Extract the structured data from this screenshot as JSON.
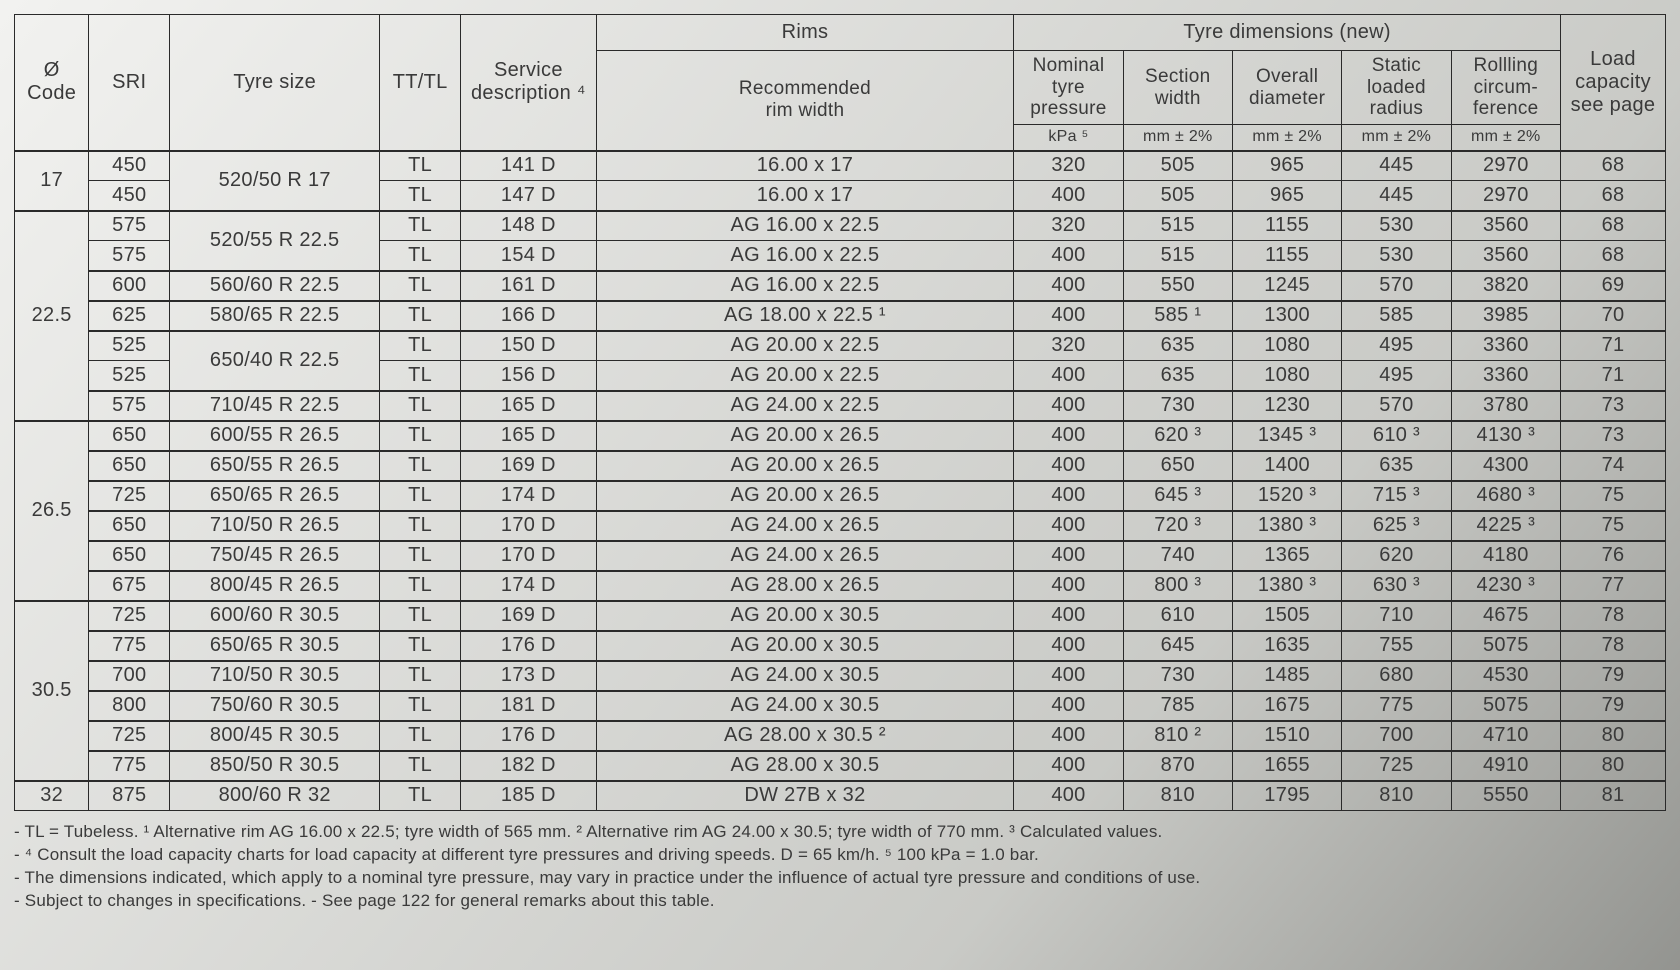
{
  "columns": {
    "code": "Ø\nCode",
    "sri": "SRI",
    "tyre": "Tyre size",
    "tttl": "TT/TL",
    "svc": "Service\ndescription ⁴",
    "rims_group": "Rims",
    "rim": "Recommended\nrim width",
    "dims_group": "Tyre dimensions (new)",
    "ntp": "Nominal\ntyre\npressure",
    "sw": "Section\nwidth",
    "od": "Overall\ndiameter",
    "slr": "Static\nloaded\nradius",
    "rc": "Rollling\ncircum-\nference",
    "load": "Load\ncapacity\nsee page",
    "u_ntp": "kPa ⁵",
    "u_sw": "mm ± 2%",
    "u_od": "mm ± 2%",
    "u_slr": "mm ± 2%",
    "u_rc": "mm ± 2%"
  },
  "groups": [
    {
      "code": "17",
      "rows": [
        {
          "sri": "450",
          "tyre": "520/50 R 17",
          "tyre_span": 2,
          "tttl": "TL",
          "svc": "141 D",
          "rim": "16.00 x 17",
          "ntp": "320",
          "sw": "505",
          "od": "965",
          "slr": "445",
          "rc": "2970",
          "load": "68"
        },
        {
          "sri": "450",
          "tttl": "TL",
          "svc": "147 D",
          "rim": "16.00 x 17",
          "ntp": "400",
          "sw": "505",
          "od": "965",
          "slr": "445",
          "rc": "2970",
          "load": "68"
        }
      ]
    },
    {
      "code": "22.5",
      "rows": [
        {
          "sri": "575",
          "tyre": "520/55 R 22.5",
          "tyre_span": 2,
          "tttl": "TL",
          "svc": "148 D",
          "rim": "AG 16.00 x 22.5",
          "ntp": "320",
          "sw": "515",
          "od": "1155",
          "slr": "530",
          "rc": "3560",
          "load": "68"
        },
        {
          "sri": "575",
          "tttl": "TL",
          "svc": "154 D",
          "rim": "AG 16.00 x 22.5",
          "ntp": "400",
          "sw": "515",
          "od": "1155",
          "slr": "530",
          "rc": "3560",
          "load": "68"
        },
        {
          "sri": "600",
          "tyre": "560/60 R 22.5",
          "tttl": "TL",
          "svc": "161 D",
          "rim": "AG 16.00 x 22.5",
          "ntp": "400",
          "sw": "550",
          "od": "1245",
          "slr": "570",
          "rc": "3820",
          "load": "69",
          "sub_start": true
        },
        {
          "sri": "625",
          "tyre": "580/65 R 22.5",
          "tttl": "TL",
          "svc": "166 D",
          "rim": "AG 18.00 x 22.5 ¹",
          "ntp": "400",
          "sw": "585 ¹",
          "od": "1300",
          "slr": "585",
          "rc": "3985",
          "load": "70",
          "sub_start": true
        },
        {
          "sri": "525",
          "tyre": "650/40 R 22.5",
          "tyre_span": 2,
          "tttl": "TL",
          "svc": "150 D",
          "rim": "AG 20.00 x 22.5",
          "ntp": "320",
          "sw": "635",
          "od": "1080",
          "slr": "495",
          "rc": "3360",
          "load": "71",
          "sub_start": true
        },
        {
          "sri": "525",
          "tttl": "TL",
          "svc": "156 D",
          "rim": "AG 20.00 x 22.5",
          "ntp": "400",
          "sw": "635",
          "od": "1080",
          "slr": "495",
          "rc": "3360",
          "load": "71"
        },
        {
          "sri": "575",
          "tyre": "710/45 R 22.5",
          "tttl": "TL",
          "svc": "165 D",
          "rim": "AG 24.00 x 22.5",
          "ntp": "400",
          "sw": "730",
          "od": "1230",
          "slr": "570",
          "rc": "3780",
          "load": "73",
          "sub_start": true
        }
      ]
    },
    {
      "code": "26.5",
      "rows": [
        {
          "sri": "650",
          "tyre": "600/55 R 26.5",
          "tttl": "TL",
          "svc": "165 D",
          "rim": "AG 20.00 x 26.5",
          "ntp": "400",
          "sw": "620 ³",
          "od": "1345 ³",
          "slr": "610 ³",
          "rc": "4130 ³",
          "load": "73"
        },
        {
          "sri": "650",
          "tyre": "650/55 R 26.5",
          "tttl": "TL",
          "svc": "169 D",
          "rim": "AG 20.00 x 26.5",
          "ntp": "400",
          "sw": "650",
          "od": "1400",
          "slr": "635",
          "rc": "4300",
          "load": "74",
          "sub_start": true
        },
        {
          "sri": "725",
          "tyre": "650/65 R 26.5",
          "tttl": "TL",
          "svc": "174 D",
          "rim": "AG 20.00 x 26.5",
          "ntp": "400",
          "sw": "645 ³",
          "od": "1520 ³",
          "slr": "715 ³",
          "rc": "4680 ³",
          "load": "75",
          "sub_start": true
        },
        {
          "sri": "650",
          "tyre": "710/50 R 26.5",
          "tttl": "TL",
          "svc": "170 D",
          "rim": "AG 24.00 x 26.5",
          "ntp": "400",
          "sw": "720 ³",
          "od": "1380 ³",
          "slr": "625 ³",
          "rc": "4225 ³",
          "load": "75",
          "sub_start": true
        },
        {
          "sri": "650",
          "tyre": "750/45 R 26.5",
          "tttl": "TL",
          "svc": "170 D",
          "rim": "AG 24.00 x 26.5",
          "ntp": "400",
          "sw": "740",
          "od": "1365",
          "slr": "620",
          "rc": "4180",
          "load": "76",
          "sub_start": true
        },
        {
          "sri": "675",
          "tyre": "800/45 R 26.5",
          "tttl": "TL",
          "svc": "174 D",
          "rim": "AG 28.00 x 26.5",
          "ntp": "400",
          "sw": "800 ³",
          "od": "1380 ³",
          "slr": "630 ³",
          "rc": "4230 ³",
          "load": "77",
          "sub_start": true
        }
      ]
    },
    {
      "code": "30.5",
      "rows": [
        {
          "sri": "725",
          "tyre": "600/60 R 30.5",
          "tttl": "TL",
          "svc": "169 D",
          "rim": "AG 20.00 x 30.5",
          "ntp": "400",
          "sw": "610",
          "od": "1505",
          "slr": "710",
          "rc": "4675",
          "load": "78"
        },
        {
          "sri": "775",
          "tyre": "650/65 R 30.5",
          "tttl": "TL",
          "svc": "176 D",
          "rim": "AG 20.00 x 30.5",
          "ntp": "400",
          "sw": "645",
          "od": "1635",
          "slr": "755",
          "rc": "5075",
          "load": "78",
          "sub_start": true
        },
        {
          "sri": "700",
          "tyre": "710/50 R 30.5",
          "tttl": "TL",
          "svc": "173 D",
          "rim": "AG 24.00 x 30.5",
          "ntp": "400",
          "sw": "730",
          "od": "1485",
          "slr": "680",
          "rc": "4530",
          "load": "79",
          "sub_start": true
        },
        {
          "sri": "800",
          "tyre": "750/60 R 30.5",
          "tttl": "TL",
          "svc": "181 D",
          "rim": "AG 24.00 x 30.5",
          "ntp": "400",
          "sw": "785",
          "od": "1675",
          "slr": "775",
          "rc": "5075",
          "load": "79",
          "sub_start": true
        },
        {
          "sri": "725",
          "tyre": "800/45 R 30.5",
          "tttl": "TL",
          "svc": "176 D",
          "rim": "AG 28.00 x 30.5 ²",
          "ntp": "400",
          "sw": "810 ²",
          "od": "1510",
          "slr": "700",
          "rc": "4710",
          "load": "80",
          "sub_start": true
        },
        {
          "sri": "775",
          "tyre": "850/50 R 30.5",
          "tttl": "TL",
          "svc": "182 D",
          "rim": "AG 28.00 x 30.5",
          "ntp": "400",
          "sw": "870",
          "od": "1655",
          "slr": "725",
          "rc": "4910",
          "load": "80",
          "sub_start": true
        }
      ]
    },
    {
      "code": "32",
      "rows": [
        {
          "sri": "875",
          "tyre": "800/60 R 32",
          "tttl": "TL",
          "svc": "185 D",
          "rim": "DW 27B x 32",
          "ntp": "400",
          "sw": "810",
          "od": "1795",
          "slr": "810",
          "rc": "5550",
          "load": "81"
        }
      ]
    }
  ],
  "footnotes": [
    "TL = Tubeless. ¹ Alternative rim AG 16.00 x 22.5; tyre width of 565 mm. ² Alternative rim AG 24.00 x 30.5; tyre width of 770 mm. ³ Calculated values.",
    "⁴ Consult the load capacity charts for load capacity at different tyre pressures and driving speeds. D = 65 km/h. ⁵ 100 kPa = 1.0 bar.",
    "The dimensions indicated, which apply to a nominal tyre pressure, may vary in practice under the influence of actual tyre pressure and conditions of use.",
    "Subject to changes in specifications. - See page 122 for general remarks about this table."
  ]
}
